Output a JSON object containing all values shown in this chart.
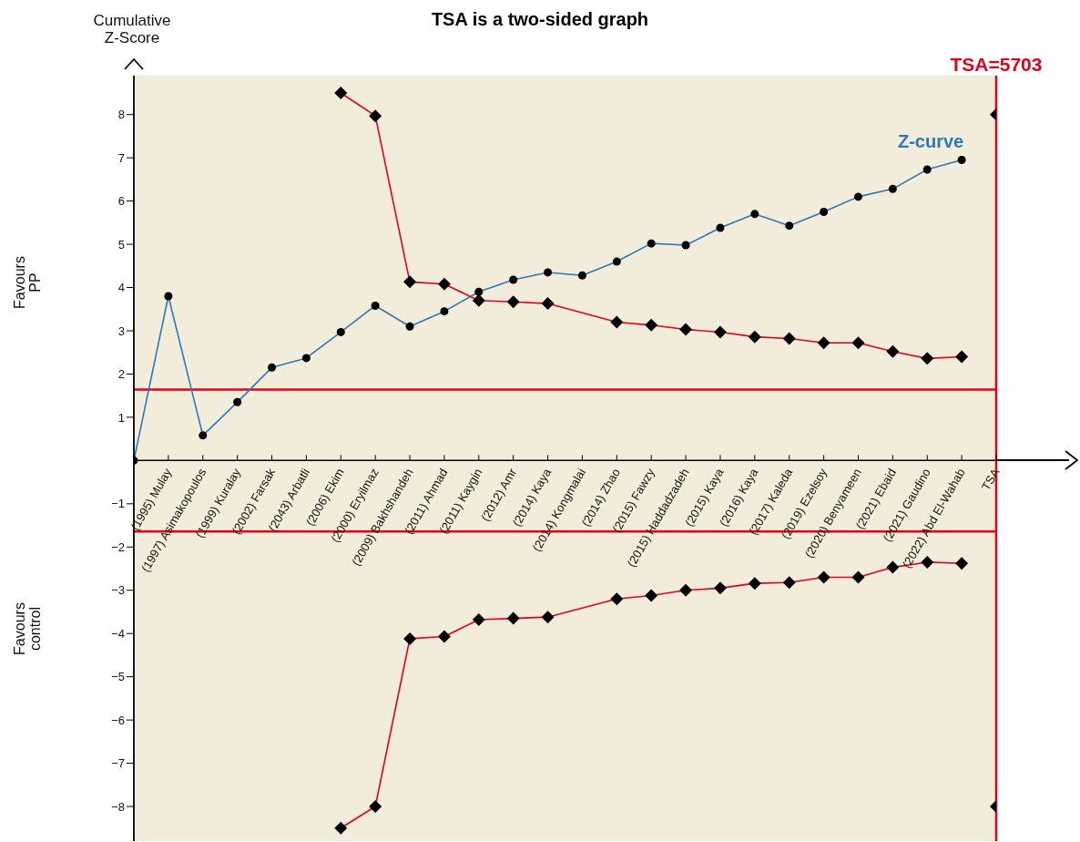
{
  "chart_data": {
    "type": "line",
    "title": "TSA is a two-sided graph",
    "ylabel": "Cumulative Z-Score",
    "categories": [
      null,
      "(1995) Mulay",
      "(1997) Asimakopoulos",
      "(1999) Kuralay",
      "(2002) Farsak",
      "(2043) Arbatli",
      "(2006) Ekim",
      "(2000) Eryilmaz",
      "(2009) Bakhshandeh",
      "(2011) Ahmad",
      "(2011) Kaygin",
      "(2012) Amr",
      "(2014) Kaya",
      "(2014) Kongmalai",
      "(2014) Zhao",
      "(2015) Fawzy",
      "(2015) Haddadzadeh",
      "(2015) Kaya",
      "(2016) Kaya",
      "(2017) Kaleda",
      "(2019) Ezelsoy",
      "(2020) Benyameen",
      "(2021) Ebaid",
      "(2021) Gaudino",
      "(2022) Abd El-Wahab",
      "TSA"
    ],
    "series": [
      {
        "name": "Z-curve",
        "marker": "circle",
        "color": "#2a78b8",
        "values": [
          0,
          3.8,
          0.58,
          1.35,
          2.15,
          2.37,
          2.97,
          3.58,
          3.1,
          3.45,
          3.9,
          4.18,
          4.35,
          4.28,
          4.6,
          5.02,
          4.98,
          5.38,
          5.7,
          5.43,
          5.75,
          6.1,
          6.28,
          6.73,
          6.95,
          null
        ]
      },
      {
        "marker": "diamond",
        "color": "#e3001b",
        "values": [
          null,
          null,
          null,
          null,
          null,
          null,
          8.5,
          7.97,
          4.13,
          4.08,
          3.7,
          3.67,
          3.63,
          null,
          3.2,
          3.13,
          3.03,
          2.97,
          2.86,
          2.82,
          2.72,
          2.72,
          2.52,
          2.36,
          2.4,
          null
        ]
      },
      {
        "marker": "diamond",
        "color": "#e3001b",
        "values": [
          null,
          null,
          null,
          null,
          null,
          null,
          -8.5,
          -8.0,
          -4.12,
          -4.07,
          -3.68,
          -3.65,
          -3.62,
          null,
          -3.2,
          -3.12,
          -3.0,
          -2.95,
          -2.84,
          -2.82,
          -2.7,
          -2.7,
          -2.47,
          -2.35,
          -2.38,
          null
        ]
      },
      {
        "type": "scatter",
        "marker": "diamond",
        "color": "#000000",
        "values": [
          null,
          null,
          null,
          null,
          null,
          null,
          null,
          null,
          null,
          null,
          null,
          null,
          null,
          null,
          null,
          null,
          null,
          null,
          null,
          null,
          null,
          null,
          null,
          null,
          null,
          8
        ]
      },
      {
        "type": "scatter",
        "marker": "diamond",
        "color": "#000000",
        "values": [
          null,
          null,
          null,
          null,
          null,
          null,
          null,
          null,
          null,
          null,
          null,
          null,
          null,
          null,
          null,
          null,
          null,
          null,
          null,
          null,
          null,
          null,
          null,
          null,
          null,
          -8
        ]
      }
    ],
    "ylim": [
      -8.8,
      8.9
    ],
    "yticks": [
      -8,
      -7,
      -6,
      -5,
      -4,
      -3,
      -2,
      -1,
      1,
      2,
      3,
      4,
      5,
      6,
      7,
      8
    ],
    "ref_lines": [
      {
        "axis": "y",
        "value": 1.64,
        "color": "#e3001b"
      },
      {
        "axis": "y",
        "value": -1.64,
        "color": "#e3001b"
      },
      {
        "axis": "x",
        "value": "TSA",
        "label": "TSA=5703",
        "color": "#e3001b"
      }
    ],
    "annotations": [
      "Favours PP",
      "Favours control"
    ],
    "grid": false
  }
}
